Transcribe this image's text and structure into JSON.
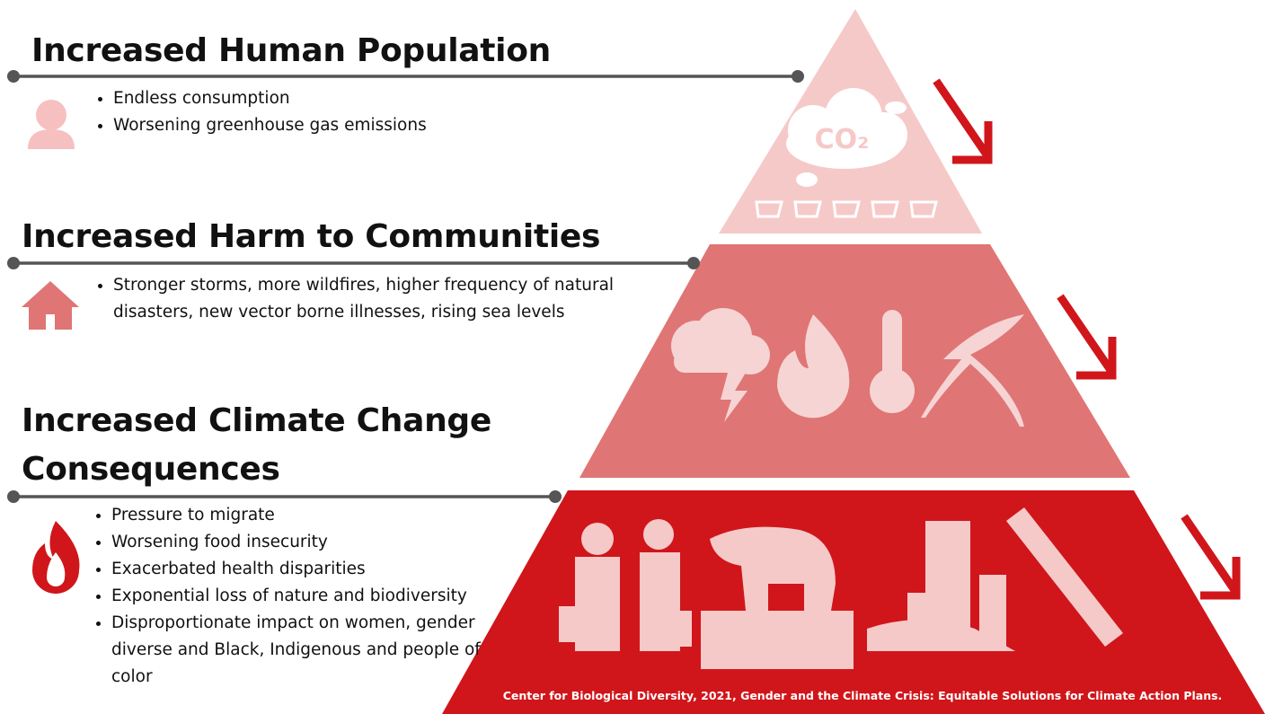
{
  "sections": [
    {
      "title": "Increased Human Population",
      "bullets": [
        "Endless consumption",
        "Worsening greenhouse gas emissions"
      ]
    },
    {
      "title": "Increased Harm to Communities",
      "bullets": [
        "Stronger storms, more wildfires, higher frequency of natural disasters, new vector borne illnesses, rising sea levels"
      ]
    },
    {
      "title": "Increased Climate Change Consequences",
      "bullets": [
        "Pressure to migrate",
        "Worsening food insecurity",
        "Exacerbated health disparities",
        "Exponential loss of nature and biodiversity",
        "Disproportionate impact on women, gender diverse and Black, Indigenous and people of color"
      ]
    }
  ],
  "pyramid": {
    "top_icon_label": "CO₂"
  },
  "citation": "Center for Biological Diversity, 2021, Gender and the Climate Crisis: Equitable Solutions for Climate Action Plans."
}
